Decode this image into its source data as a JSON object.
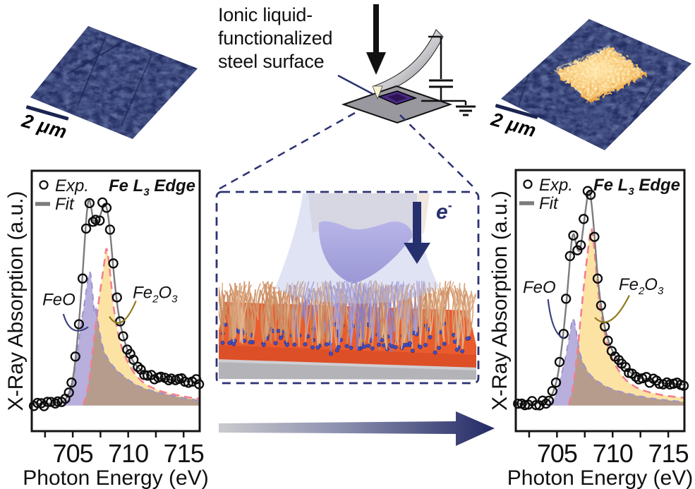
{
  "palette": {
    "navy": "#2c3272",
    "orange_surface": "#e85a2d",
    "gold": "#e7a33c",
    "purple_fill": "#aba1d6",
    "yellow_fill": "#fcdf96",
    "pink_dash": "#f2808f",
    "purple_dash": "#9a8fd2",
    "fit_gray": "#7c7c7c",
    "afm_base": "#232d62"
  },
  "schematic": {
    "caption_line1": "Ionic liquid-",
    "caption_line2": "functionalized",
    "caption_line3": "steel surface"
  },
  "inset": {
    "electron_base": "e",
    "electron_sup": "-"
  },
  "afm_left": {
    "scale_label": "2 μm"
  },
  "afm_right": {
    "scale_label": "2 μm"
  },
  "chart_data": [
    {
      "id": "left",
      "type": "area+scatter",
      "title_parts": [
        [
          "Fe L"
        ],
        [
          "3",
          "sub"
        ],
        [
          " Edge"
        ]
      ],
      "xlabel": "Photon Energy (eV)",
      "ylabel": "X-Ray Absorption (a.u.)",
      "xlim": [
        701.3,
        716.45
      ],
      "xticks_major": [
        705,
        710,
        715
      ],
      "xticks_minor": [
        702.5,
        707.5,
        712.5
      ],
      "legend": [
        {
          "marker": "circle",
          "label": "Exp."
        },
        {
          "marker": "line",
          "label": "Fit"
        }
      ],
      "exp": {
        "dx": 0.31,
        "r": 6
      },
      "series": {
        "fit": [
          [
            701.4,
            0.105
          ],
          [
            702.3,
            0.105
          ],
          [
            703.3,
            0.107
          ],
          [
            704.1,
            0.113
          ],
          [
            704.6,
            0.14
          ],
          [
            705.0,
            0.2
          ],
          [
            705.3,
            0.3
          ],
          [
            705.6,
            0.44
          ],
          [
            705.85,
            0.58
          ],
          [
            706.05,
            0.71
          ],
          [
            706.25,
            0.83
          ],
          [
            706.45,
            0.89
          ],
          [
            706.65,
            0.862
          ],
          [
            706.85,
            0.81
          ],
          [
            707.05,
            0.79
          ],
          [
            707.25,
            0.8
          ],
          [
            707.45,
            0.825
          ],
          [
            707.65,
            0.85
          ],
          [
            707.85,
            0.868
          ],
          [
            708.0,
            0.865
          ],
          [
            708.2,
            0.825
          ],
          [
            708.4,
            0.75
          ],
          [
            708.6,
            0.655
          ],
          [
            708.8,
            0.565
          ],
          [
            709.05,
            0.475
          ],
          [
            709.35,
            0.4
          ],
          [
            709.65,
            0.35
          ],
          [
            710.0,
            0.305
          ],
          [
            710.5,
            0.265
          ],
          [
            711.0,
            0.24
          ],
          [
            711.6,
            0.22
          ],
          [
            712.3,
            0.208
          ],
          [
            713.2,
            0.2
          ],
          [
            714.2,
            0.195
          ],
          [
            715.3,
            0.192
          ],
          [
            716.4,
            0.19
          ]
        ],
        "FeO": [
          [
            704.15,
            0.102
          ],
          [
            704.7,
            0.135
          ],
          [
            705.1,
            0.21
          ],
          [
            705.5,
            0.33
          ],
          [
            705.8,
            0.425
          ],
          [
            706.1,
            0.505
          ],
          [
            706.35,
            0.578
          ],
          [
            706.55,
            0.61
          ],
          [
            706.7,
            0.575
          ],
          [
            706.85,
            0.5
          ],
          [
            707.0,
            0.445
          ],
          [
            707.12,
            0.478
          ],
          [
            707.28,
            0.42
          ],
          [
            707.5,
            0.362
          ],
          [
            707.75,
            0.318
          ],
          [
            708.05,
            0.287
          ],
          [
            708.45,
            0.26
          ],
          [
            708.95,
            0.235
          ],
          [
            709.55,
            0.212
          ],
          [
            710.2,
            0.192
          ],
          [
            711.0,
            0.172
          ],
          [
            712.0,
            0.157
          ],
          [
            713.1,
            0.145
          ],
          [
            714.2,
            0.134
          ],
          [
            715.3,
            0.125
          ],
          [
            716.4,
            0.118
          ]
        ],
        "Fe2O3": [
          [
            705.95,
            0.102
          ],
          [
            706.35,
            0.16
          ],
          [
            706.7,
            0.27
          ],
          [
            707.0,
            0.38
          ],
          [
            707.3,
            0.485
          ],
          [
            707.6,
            0.575
          ],
          [
            707.85,
            0.648
          ],
          [
            708.05,
            0.7
          ],
          [
            708.25,
            0.652
          ],
          [
            708.45,
            0.572
          ],
          [
            708.65,
            0.49
          ],
          [
            708.9,
            0.418
          ],
          [
            709.2,
            0.355
          ],
          [
            709.6,
            0.3
          ],
          [
            710.1,
            0.255
          ],
          [
            710.7,
            0.215
          ],
          [
            711.4,
            0.186
          ],
          [
            712.2,
            0.166
          ],
          [
            713.2,
            0.15
          ],
          [
            714.2,
            0.14
          ],
          [
            715.3,
            0.131
          ],
          [
            716.4,
            0.125
          ]
        ]
      },
      "annotations": [
        {
          "parts": [
            [
              "FeO"
            ]
          ],
          "pos": [
            702.26,
            0.484
          ],
          "connector": [
            [
              704.15,
              0.45
            ],
            [
              704.8,
              0.355
            ],
            [
              706.4,
              0.4
            ]
          ],
          "color": "#3d4280"
        },
        {
          "parts": [
            [
              "Fe"
            ],
            [
              "2",
              "sub"
            ],
            [
              "O"
            ],
            [
              "3",
              "sub"
            ]
          ],
          "pos": [
            710.41,
            0.511
          ],
          "connector": [
            [
              710.7,
              0.5
            ],
            [
              709.4,
              0.37
            ],
            [
              708.3,
              0.44
            ]
          ],
          "color": "#8f7a1e"
        }
      ]
    },
    {
      "id": "right",
      "type": "area+scatter",
      "title_parts": [
        [
          "Fe L"
        ],
        [
          "3",
          "sub"
        ],
        [
          " Edge"
        ]
      ],
      "xlabel": "Photon Energy (eV)",
      "ylabel": "X-Ray Absorption (a.u.)",
      "xlim": [
        701.3,
        716.45
      ],
      "xticks_major": [
        705,
        710,
        715
      ],
      "xticks_minor": [
        702.5,
        707.5,
        712.5
      ],
      "legend": [
        {
          "marker": "circle",
          "label": "Exp."
        },
        {
          "marker": "line",
          "label": "Fit"
        }
      ],
      "exp": {
        "dx": 0.31,
        "r": 6
      },
      "series": {
        "fit": [
          [
            701.4,
            0.105
          ],
          [
            702.4,
            0.105
          ],
          [
            703.4,
            0.108
          ],
          [
            704.2,
            0.118
          ],
          [
            704.7,
            0.155
          ],
          [
            705.1,
            0.22
          ],
          [
            705.45,
            0.33
          ],
          [
            705.8,
            0.47
          ],
          [
            706.1,
            0.62
          ],
          [
            706.3,
            0.72
          ],
          [
            706.5,
            0.755
          ],
          [
            706.7,
            0.72
          ],
          [
            706.9,
            0.692
          ],
          [
            707.1,
            0.7
          ],
          [
            707.3,
            0.758
          ],
          [
            707.55,
            0.84
          ],
          [
            707.75,
            0.9
          ],
          [
            707.9,
            0.922
          ],
          [
            708.05,
            0.89
          ],
          [
            708.25,
            0.81
          ],
          [
            708.45,
            0.705
          ],
          [
            708.65,
            0.595
          ],
          [
            708.9,
            0.5
          ],
          [
            709.2,
            0.42
          ],
          [
            709.5,
            0.362
          ],
          [
            709.9,
            0.315
          ],
          [
            710.4,
            0.275
          ],
          [
            711.0,
            0.245
          ],
          [
            711.7,
            0.222
          ],
          [
            712.5,
            0.205
          ],
          [
            713.5,
            0.193
          ],
          [
            714.5,
            0.185
          ],
          [
            715.5,
            0.18
          ],
          [
            716.4,
            0.178
          ]
        ],
        "FeO": [
          [
            704.35,
            0.102
          ],
          [
            704.9,
            0.14
          ],
          [
            705.3,
            0.2
          ],
          [
            705.7,
            0.27
          ],
          [
            706.0,
            0.335
          ],
          [
            706.25,
            0.398
          ],
          [
            706.45,
            0.43
          ],
          [
            706.65,
            0.402
          ],
          [
            706.85,
            0.348
          ],
          [
            707.05,
            0.302
          ],
          [
            707.3,
            0.266
          ],
          [
            707.6,
            0.24
          ],
          [
            708.0,
            0.215
          ],
          [
            708.5,
            0.196
          ],
          [
            709.2,
            0.176
          ],
          [
            710.0,
            0.16
          ],
          [
            711.0,
            0.148
          ],
          [
            712.2,
            0.136
          ],
          [
            713.5,
            0.126
          ],
          [
            715.0,
            0.118
          ],
          [
            716.4,
            0.112
          ]
        ],
        "Fe2O3": [
          [
            706.05,
            0.102
          ],
          [
            706.45,
            0.17
          ],
          [
            706.8,
            0.29
          ],
          [
            707.1,
            0.42
          ],
          [
            707.4,
            0.55
          ],
          [
            707.7,
            0.663
          ],
          [
            707.95,
            0.748
          ],
          [
            708.1,
            0.775
          ],
          [
            708.3,
            0.72
          ],
          [
            708.5,
            0.63
          ],
          [
            708.7,
            0.54
          ],
          [
            708.95,
            0.455
          ],
          [
            709.25,
            0.385
          ],
          [
            709.6,
            0.325
          ],
          [
            710.0,
            0.275
          ],
          [
            710.5,
            0.235
          ],
          [
            711.1,
            0.2
          ],
          [
            711.8,
            0.176
          ],
          [
            712.6,
            0.158
          ],
          [
            713.6,
            0.146
          ],
          [
            714.6,
            0.137
          ],
          [
            715.5,
            0.132
          ],
          [
            716.4,
            0.128
          ]
        ]
      },
      "annotations": [
        {
          "parts": [
            [
              "FeO"
            ]
          ],
          "pos": [
            701.93,
            0.53
          ],
          "connector": [
            [
              704.2,
              0.505
            ],
            [
              704.55,
              0.37
            ],
            [
              705.65,
              0.355
            ]
          ],
          "color": "#3d4280"
        },
        {
          "parts": [
            [
              "Fe"
            ],
            [
              "2",
              "sub"
            ],
            [
              "O"
            ],
            [
              "3",
              "sub"
            ]
          ],
          "pos": [
            710.55,
            0.54
          ],
          "connector": [
            [
              711.5,
              0.52
            ],
            [
              709.8,
              0.375
            ],
            [
              708.4,
              0.435
            ]
          ],
          "color": "#8f7a1e"
        }
      ]
    }
  ]
}
